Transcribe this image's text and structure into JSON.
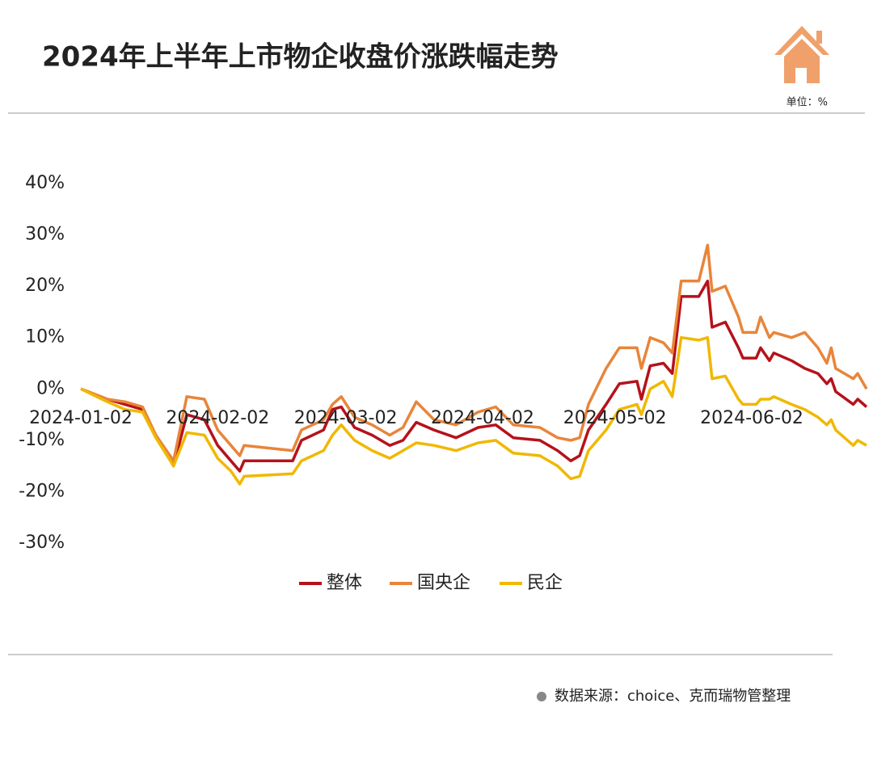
{
  "chart_data": {
    "type": "line",
    "title": "2024年上半年上市物企收盘价涨跌幅走势",
    "unit_note": "单位：%",
    "source": "数据来源：choice、克而瑞物管整理",
    "x": [
      "2024-01-02",
      "2024-01-08",
      "2024-01-12",
      "2024-01-16",
      "2024-01-19",
      "2024-01-23",
      "2024-01-26",
      "2024-01-30",
      "2024-02-02",
      "2024-02-05",
      "2024-02-07",
      "2024-02-08",
      "2024-02-19",
      "2024-02-21",
      "2024-02-26",
      "2024-02-28",
      "2024-03-01",
      "2024-03-04",
      "2024-03-08",
      "2024-03-12",
      "2024-03-15",
      "2024-03-18",
      "2024-03-22",
      "2024-03-27",
      "2024-04-01",
      "2024-04-05",
      "2024-04-09",
      "2024-04-15",
      "2024-04-19",
      "2024-04-22",
      "2024-04-24",
      "2024-04-26",
      "2024-04-30",
      "2024-05-03",
      "2024-05-07",
      "2024-05-08",
      "2024-05-10",
      "2024-05-13",
      "2024-05-15",
      "2024-05-17",
      "2024-05-21",
      "2024-05-23",
      "2024-05-24",
      "2024-05-27",
      "2024-05-30",
      "2024-05-31",
      "2024-06-03",
      "2024-06-04",
      "2024-06-06",
      "2024-06-07",
      "2024-06-11",
      "2024-06-14",
      "2024-06-17",
      "2024-06-19",
      "2024-06-20",
      "2024-06-21",
      "2024-06-25",
      "2024-06-26",
      "2024-06-28"
    ],
    "xlim": [
      "2024-01-02",
      "2024-06-28"
    ],
    "xticks": [
      "2024-01-02",
      "2024-02-02",
      "2024-03-02",
      "2024-04-02",
      "2024-05-02",
      "2024-06-02"
    ],
    "ylim": [
      -30,
      40
    ],
    "yticks": [
      {
        "value": -30,
        "label": "-30%"
      },
      {
        "value": -20,
        "label": "-20%"
      },
      {
        "value": -10,
        "label": "-10%"
      },
      {
        "value": 0,
        "label": "0%"
      },
      {
        "value": 10,
        "label": "10%"
      },
      {
        "value": 20,
        "label": "20%"
      },
      {
        "value": 30,
        "label": "30%"
      },
      {
        "value": 40,
        "label": "40%"
      }
    ],
    "grid": false,
    "legend": "bottom",
    "series": [
      {
        "name": "整体",
        "color": "#b5121b",
        "values": [
          0,
          -2,
          -3,
          -4,
          -9,
          -15,
          -5,
          -6,
          -11,
          -14,
          -16,
          -14,
          -14,
          -10,
          -8,
          -4,
          -3.5,
          -7.5,
          -9,
          -11,
          -10,
          -6.5,
          -8,
          -9.5,
          -7.5,
          -7,
          -9.5,
          -10,
          -12,
          -14,
          -13,
          -8,
          -3,
          1,
          1.5,
          -2,
          4.5,
          5,
          3,
          18,
          18,
          21,
          12,
          13,
          8,
          6,
          6,
          8,
          5.5,
          7,
          5.5,
          4,
          3,
          1,
          2,
          -0.5,
          -3,
          -2,
          -3.5
        ]
      },
      {
        "name": "国央企",
        "color": "#e8853a",
        "values": [
          0,
          -2,
          -2.5,
          -3.5,
          -9,
          -14,
          -1.5,
          -2,
          -8,
          -11,
          -13,
          -11,
          -12,
          -8,
          -6,
          -3,
          -1.5,
          -5.5,
          -7,
          -9,
          -7.5,
          -2.5,
          -6,
          -7,
          -4.5,
          -3.5,
          -7,
          -7.5,
          -9.5,
          -10,
          -9.5,
          -3,
          4,
          8,
          8,
          4,
          10,
          9,
          7,
          21,
          21,
          28,
          19,
          20,
          14,
          11,
          11,
          14,
          10,
          11,
          10,
          11,
          8,
          5,
          8,
          4,
          2,
          3,
          0
        ]
      },
      {
        "name": "民企",
        "color": "#f0b800",
        "values": [
          0,
          -2.5,
          -4,
          -4.5,
          -9.5,
          -15,
          -8.5,
          -9,
          -13.5,
          -16,
          -18.5,
          -17,
          -16.5,
          -14,
          -12,
          -9,
          -7,
          -10,
          -12,
          -13.5,
          -12,
          -10.5,
          -11,
          -12,
          -10.5,
          -10,
          -12.5,
          -13,
          -15,
          -17.5,
          -17,
          -12,
          -8,
          -4,
          -3,
          -5,
          0,
          1.5,
          -1.5,
          10,
          9.5,
          10,
          2,
          2.5,
          -2,
          -3,
          -3,
          -2,
          -2,
          -1.5,
          -3,
          -4,
          -5.5,
          -7,
          -6,
          -8,
          -11,
          -10,
          -11
        ]
      }
    ]
  }
}
